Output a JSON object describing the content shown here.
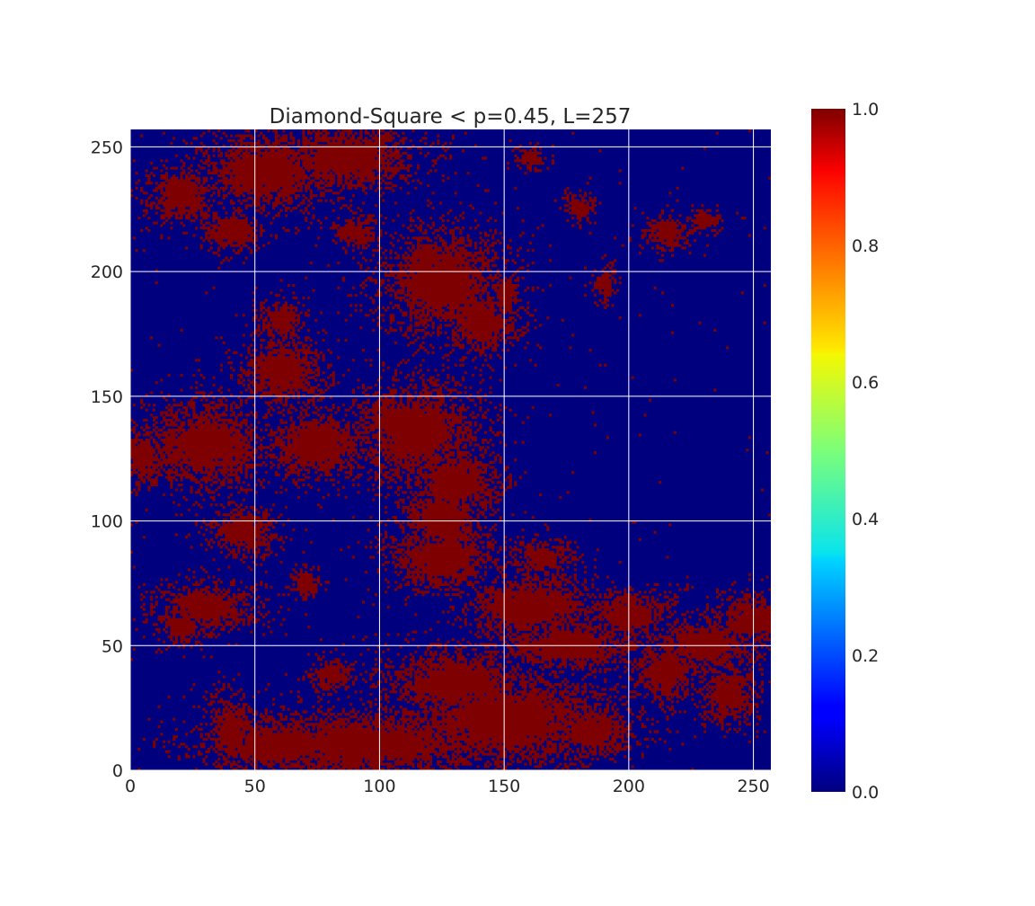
{
  "chart_data": {
    "type": "heatmap",
    "title": "Diamond-Square < p=0.45, L=257",
    "xlabel": "",
    "ylabel": "",
    "grid_size": 257,
    "xlim": [
      0,
      257
    ],
    "ylim": [
      0,
      257
    ],
    "x_ticks": [
      "0",
      "50",
      "100",
      "150",
      "200",
      "250"
    ],
    "y_ticks": [
      "0",
      "50",
      "100",
      "150",
      "200",
      "250"
    ],
    "grid": true,
    "colormap": "jet",
    "colorbar": {
      "range": [
        0.0,
        1.0
      ],
      "ticks": [
        "0.0",
        "0.2",
        "0.4",
        "0.6",
        "0.8",
        "1.0"
      ]
    },
    "value_colors": {
      "0": "#00007f",
      "1": "#7f0000"
    },
    "p": 0.45
  }
}
